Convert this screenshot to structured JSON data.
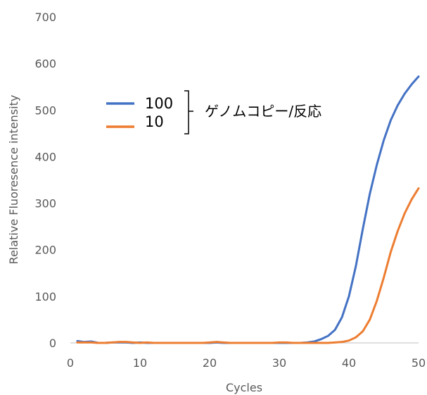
{
  "chart_data": {
    "type": "line",
    "title": "",
    "xlabel": "Cycles",
    "ylabel": "Relative Fluoresence intensity",
    "xlim": [
      0,
      50
    ],
    "ylim": [
      0,
      700
    ],
    "xticks": [
      0,
      10,
      20,
      30,
      40,
      50
    ],
    "yticks": [
      0,
      100,
      200,
      300,
      400,
      500,
      600,
      700
    ],
    "grid": false,
    "legend_position": "upper-left",
    "annotation": "ゲノムコピー/反応",
    "series": [
      {
        "name": "100",
        "color": "#4472c4",
        "x": [
          1,
          2,
          3,
          4,
          5,
          6,
          7,
          8,
          9,
          10,
          11,
          12,
          13,
          14,
          15,
          16,
          17,
          18,
          19,
          20,
          21,
          22,
          23,
          24,
          25,
          26,
          27,
          28,
          29,
          30,
          31,
          32,
          33,
          34,
          35,
          36,
          37,
          38,
          39,
          40,
          41,
          42,
          43,
          44,
          45,
          46,
          47,
          48,
          49,
          50
        ],
        "y": [
          4,
          2,
          3,
          0,
          0,
          1,
          1,
          1,
          0,
          1,
          0,
          0,
          0,
          0,
          0,
          0,
          0,
          0,
          0,
          0,
          1,
          0,
          0,
          0,
          0,
          0,
          0,
          0,
          0,
          0,
          0,
          0,
          0,
          1,
          3,
          8,
          15,
          28,
          55,
          100,
          165,
          245,
          320,
          382,
          435,
          478,
          510,
          535,
          555,
          572
        ]
      },
      {
        "name": "10",
        "color": "#ed7d31",
        "x": [
          1,
          2,
          3,
          4,
          5,
          6,
          7,
          8,
          9,
          10,
          11,
          12,
          13,
          14,
          15,
          16,
          17,
          18,
          19,
          20,
          21,
          22,
          23,
          24,
          25,
          26,
          27,
          28,
          29,
          30,
          31,
          32,
          33,
          34,
          35,
          36,
          37,
          38,
          39,
          40,
          41,
          42,
          43,
          44,
          45,
          46,
          47,
          48,
          49,
          50
        ],
        "y": [
          1,
          1,
          1,
          0,
          0,
          1,
          2,
          2,
          1,
          0,
          1,
          0,
          0,
          0,
          0,
          0,
          0,
          0,
          0,
          1,
          2,
          1,
          0,
          0,
          0,
          0,
          0,
          0,
          0,
          1,
          1,
          0,
          0,
          0,
          0,
          0,
          0,
          1,
          2,
          5,
          12,
          25,
          50,
          90,
          140,
          195,
          240,
          278,
          308,
          332
        ]
      }
    ]
  }
}
